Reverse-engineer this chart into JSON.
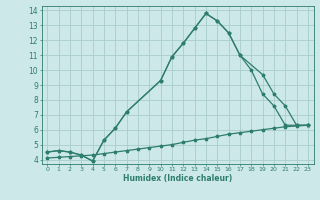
{
  "xlabel": "Humidex (Indice chaleur)",
  "bg_color": "#cce8e8",
  "grid_color": "#aacccc",
  "line_color": "#2e7d6e",
  "xlim": [
    -0.5,
    23.5
  ],
  "ylim": [
    3.7,
    14.3
  ],
  "xticks": [
    0,
    1,
    2,
    3,
    4,
    5,
    6,
    7,
    8,
    9,
    10,
    11,
    12,
    13,
    14,
    15,
    16,
    17,
    18,
    19,
    20,
    21,
    22,
    23
  ],
  "yticks": [
    4,
    5,
    6,
    7,
    8,
    9,
    10,
    11,
    12,
    13,
    14
  ],
  "curve1_x": [
    0,
    1,
    2,
    3,
    4,
    5,
    6,
    7,
    10,
    11,
    12,
    13,
    14,
    15,
    16,
    17,
    18,
    19,
    20,
    21,
    22,
    23
  ],
  "curve1_y": [
    4.5,
    4.6,
    4.5,
    4.3,
    3.9,
    5.3,
    6.1,
    7.2,
    9.3,
    10.9,
    11.8,
    12.8,
    13.8,
    13.3,
    12.5,
    11.0,
    10.0,
    8.4,
    7.6,
    6.3,
    6.3,
    6.3
  ],
  "curve2_x": [
    0,
    1,
    2,
    3,
    4,
    5,
    6,
    7,
    10,
    11,
    12,
    13,
    14,
    15,
    16,
    17,
    19,
    20,
    21,
    22,
    23
  ],
  "curve2_y": [
    4.5,
    4.6,
    4.5,
    4.3,
    3.9,
    5.3,
    6.1,
    7.2,
    9.3,
    10.9,
    11.8,
    12.8,
    13.8,
    13.3,
    12.5,
    11.0,
    9.7,
    8.4,
    7.6,
    6.3,
    6.3
  ],
  "curve3_x": [
    0,
    1,
    2,
    3,
    4,
    5,
    6,
    7,
    8,
    9,
    10,
    11,
    12,
    13,
    14,
    15,
    16,
    17,
    18,
    19,
    20,
    21,
    22,
    23
  ],
  "curve3_y": [
    4.1,
    4.15,
    4.2,
    4.25,
    4.3,
    4.4,
    4.5,
    4.6,
    4.7,
    4.8,
    4.9,
    5.0,
    5.15,
    5.3,
    5.4,
    5.55,
    5.7,
    5.8,
    5.9,
    6.0,
    6.1,
    6.2,
    6.25,
    6.3
  ]
}
